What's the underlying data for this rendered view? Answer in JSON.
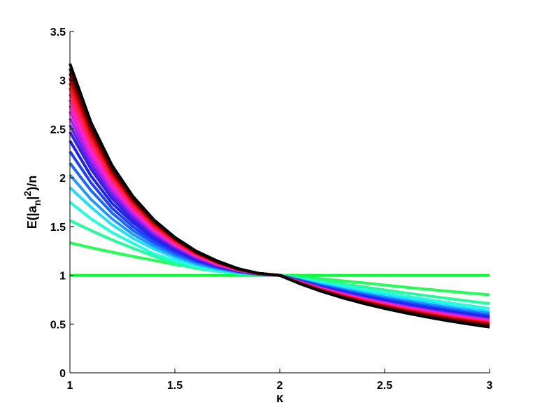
{
  "chart_data": {
    "type": "line",
    "title": "",
    "xlabel": "κ",
    "ylabel": "E(|a",
    "ylabel_sub": "n",
    "ylabel_mid": "|",
    "ylabel_sup": "2",
    "ylabel_end": ")/n",
    "xlim": [
      1,
      3
    ],
    "ylim": [
      0,
      3.5
    ],
    "grid": false,
    "legend": "none",
    "x_ticks": [
      {
        "value": 1,
        "label": "1"
      },
      {
        "value": 1.5,
        "label": "1.5"
      },
      {
        "value": 2,
        "label": "2"
      },
      {
        "value": 2.5,
        "label": "2.5"
      },
      {
        "value": 3,
        "label": "3"
      }
    ],
    "y_ticks": [
      {
        "value": 0,
        "label": "0"
      },
      {
        "value": 0.5,
        "label": "0.5"
      },
      {
        "value": 1,
        "label": "1"
      },
      {
        "value": 1.5,
        "label": "1.5"
      },
      {
        "value": 2,
        "label": "2"
      },
      {
        "value": 2.5,
        "label": "2.5"
      },
      {
        "value": 3,
        "label": "3"
      },
      {
        "value": 3.5,
        "label": "3.5"
      }
    ],
    "x": [
      1.0,
      1.1,
      1.2,
      1.3,
      1.4,
      1.5,
      1.6,
      1.7,
      1.8,
      1.9,
      2.0,
      2.1,
      2.2,
      2.3,
      2.4,
      2.5,
      2.6,
      2.7,
      2.8,
      2.9,
      3.0
    ],
    "series": [
      {
        "color": "#00ff33",
        "values": [
          1.0,
          1.0,
          1.0,
          1.0,
          1.0,
          1.0,
          1.0,
          1.0,
          1.0,
          1.0,
          1.0,
          1.0,
          1.0,
          1.0,
          1.0,
          1.0,
          1.0,
          1.0,
          1.0,
          1.0,
          1.0
        ]
      },
      {
        "color": "#22ff55",
        "values": [
          1.333,
          1.284,
          1.237,
          1.194,
          1.153,
          1.111,
          1.078,
          1.052,
          1.031,
          1.014,
          1.0,
          0.983,
          0.964,
          0.943,
          0.922,
          0.9,
          0.878,
          0.857,
          0.837,
          0.818,
          0.8
        ]
      },
      {
        "color": "#22ff99",
        "values": [
          1.562,
          1.46,
          1.364,
          1.278,
          1.196,
          1.12,
          1.071,
          1.042,
          1.021,
          1.008,
          1.0,
          0.973,
          0.943,
          0.912,
          0.881,
          0.85,
          0.82,
          0.791,
          0.763,
          0.736,
          0.71
        ]
      },
      {
        "color": "#22ffdd",
        "values": [
          1.75,
          1.58,
          1.44,
          1.33,
          1.22,
          1.15,
          1.09,
          1.05,
          1.02,
          1.01,
          1.0,
          0.96,
          0.925,
          0.89,
          0.855,
          0.82,
          0.785,
          0.752,
          0.72,
          0.69,
          0.66
        ]
      },
      {
        "color": "#22ddff",
        "values": [
          1.9,
          1.7,
          1.52,
          1.38,
          1.27,
          1.18,
          1.11,
          1.06,
          1.03,
          1.01,
          1.0,
          0.955,
          0.91,
          0.87,
          0.83,
          0.795,
          0.76,
          0.725,
          0.69,
          0.66,
          0.63
        ]
      },
      {
        "color": "#2299ff",
        "values": [
          2.03,
          1.78,
          1.58,
          1.42,
          1.3,
          1.2,
          1.12,
          1.07,
          1.03,
          1.01,
          1.0,
          0.95,
          0.9,
          0.858,
          0.815,
          0.775,
          0.74,
          0.705,
          0.67,
          0.64,
          0.61
        ]
      },
      {
        "color": "#1a66ff",
        "values": [
          2.15,
          1.87,
          1.64,
          1.46,
          1.33,
          1.22,
          1.14,
          1.08,
          1.04,
          1.01,
          1.0,
          0.945,
          0.893,
          0.847,
          0.803,
          0.762,
          0.725,
          0.69,
          0.655,
          0.623,
          0.593
        ]
      },
      {
        "color": "#1f3fff",
        "values": [
          2.27,
          1.95,
          1.69,
          1.5,
          1.35,
          1.24,
          1.15,
          1.09,
          1.04,
          1.01,
          1.0,
          0.942,
          0.886,
          0.838,
          0.792,
          0.75,
          0.712,
          0.676,
          0.642,
          0.61,
          0.58
        ]
      },
      {
        "color": "#2222ee",
        "values": [
          2.38,
          2.02,
          1.74,
          1.54,
          1.38,
          1.26,
          1.16,
          1.09,
          1.045,
          1.015,
          1.0,
          0.938,
          0.88,
          0.83,
          0.783,
          0.74,
          0.7,
          0.665,
          0.63,
          0.598,
          0.568
        ]
      },
      {
        "color": "#3322dd",
        "values": [
          2.47,
          2.09,
          1.79,
          1.57,
          1.4,
          1.27,
          1.17,
          1.1,
          1.05,
          1.015,
          1.0,
          0.935,
          0.875,
          0.823,
          0.775,
          0.732,
          0.692,
          0.655,
          0.62,
          0.588,
          0.558
        ]
      },
      {
        "color": "#6622ee",
        "values": [
          2.54,
          2.14,
          1.83,
          1.6,
          1.42,
          1.29,
          1.18,
          1.1,
          1.05,
          1.015,
          1.0,
          0.932,
          0.87,
          0.817,
          0.768,
          0.724,
          0.684,
          0.647,
          0.612,
          0.58,
          0.55
        ]
      },
      {
        "color": "#aa22ee",
        "values": [
          2.61,
          2.19,
          1.87,
          1.63,
          1.44,
          1.3,
          1.19,
          1.11,
          1.05,
          1.015,
          1.0,
          0.93,
          0.867,
          0.812,
          0.762,
          0.717,
          0.676,
          0.639,
          0.604,
          0.572,
          0.542
        ]
      },
      {
        "color": "#dd22dd",
        "values": [
          2.68,
          2.24,
          1.9,
          1.65,
          1.46,
          1.31,
          1.2,
          1.11,
          1.055,
          1.015,
          1.0,
          0.928,
          0.863,
          0.807,
          0.757,
          0.711,
          0.67,
          0.632,
          0.597,
          0.565,
          0.535
        ]
      },
      {
        "color": "#ff22cc",
        "values": [
          2.74,
          2.28,
          1.93,
          1.67,
          1.47,
          1.32,
          1.2,
          1.12,
          1.055,
          1.015,
          1.0,
          0.926,
          0.86,
          0.803,
          0.752,
          0.706,
          0.664,
          0.626,
          0.591,
          0.559,
          0.529
        ]
      },
      {
        "color": "#ff2299",
        "values": [
          2.8,
          2.32,
          1.96,
          1.69,
          1.49,
          1.33,
          1.21,
          1.12,
          1.06,
          1.015,
          1.0,
          0.924,
          0.857,
          0.799,
          0.747,
          0.701,
          0.659,
          0.621,
          0.585,
          0.553,
          0.523
        ]
      },
      {
        "color": "#ff2266",
        "values": [
          2.86,
          2.36,
          1.99,
          1.71,
          1.5,
          1.34,
          1.22,
          1.13,
          1.06,
          1.015,
          1.0,
          0.922,
          0.854,
          0.795,
          0.743,
          0.696,
          0.654,
          0.615,
          0.58,
          0.547,
          0.517
        ]
      },
      {
        "color": "#ff1a33",
        "values": [
          2.92,
          2.4,
          2.01,
          1.73,
          1.51,
          1.35,
          1.22,
          1.13,
          1.06,
          1.015,
          1.0,
          0.92,
          0.851,
          0.791,
          0.738,
          0.691,
          0.648,
          0.609,
          0.574,
          0.541,
          0.511
        ]
      },
      {
        "color": "#ee1111",
        "values": [
          2.97,
          2.43,
          2.04,
          1.75,
          1.52,
          1.36,
          1.23,
          1.13,
          1.06,
          1.02,
          1.0,
          0.918,
          0.848,
          0.787,
          0.734,
          0.686,
          0.643,
          0.604,
          0.568,
          0.535,
          0.505
        ]
      },
      {
        "color": "#bb0000",
        "values": [
          3.02,
          2.47,
          2.06,
          1.76,
          1.54,
          1.37,
          1.23,
          1.14,
          1.065,
          1.02,
          1.0,
          0.916,
          0.845,
          0.783,
          0.729,
          0.681,
          0.637,
          0.597,
          0.561,
          0.528,
          0.498
        ]
      },
      {
        "color": "#880000",
        "values": [
          3.07,
          2.5,
          2.08,
          1.78,
          1.55,
          1.37,
          1.24,
          1.14,
          1.065,
          1.02,
          1.0,
          0.914,
          0.842,
          0.779,
          0.724,
          0.675,
          0.631,
          0.591,
          0.554,
          0.521,
          0.49
        ]
      },
      {
        "color": "#440000",
        "values": [
          3.12,
          2.53,
          2.1,
          1.79,
          1.56,
          1.38,
          1.24,
          1.14,
          1.065,
          1.02,
          1.0,
          0.912,
          0.838,
          0.774,
          0.718,
          0.668,
          0.623,
          0.582,
          0.545,
          0.511,
          0.48
        ]
      },
      {
        "color": "#000000",
        "values": [
          3.17,
          2.57,
          2.13,
          1.81,
          1.57,
          1.39,
          1.25,
          1.15,
          1.07,
          1.02,
          1.0,
          0.91,
          0.834,
          0.768,
          0.711,
          0.66,
          0.614,
          0.572,
          0.534,
          0.5,
          0.468
        ]
      }
    ]
  }
}
